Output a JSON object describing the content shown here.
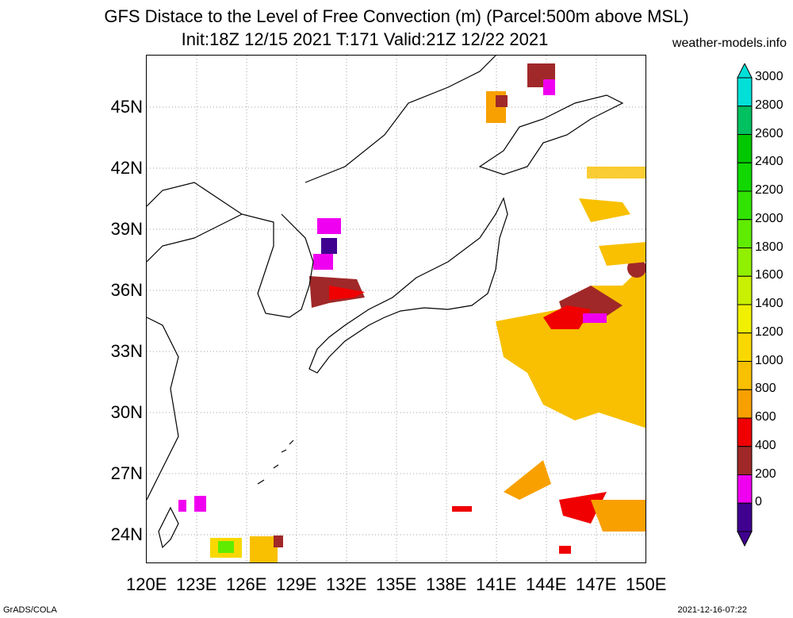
{
  "header": {
    "title_line1": "GFS Distace to the Level of Free Convection (m) (Parcel:500m above MSL)",
    "title_line2": "Init:18Z 12/15 2021 T:171 Valid:21Z 12/22 2021",
    "credit": "weather-models.info"
  },
  "axes": {
    "lat_labels": [
      "45N",
      "42N",
      "39N",
      "36N",
      "33N",
      "30N",
      "27N",
      "24N"
    ],
    "lon_labels": [
      "120E",
      "123E",
      "126E",
      "129E",
      "132E",
      "135E",
      "138E",
      "141E",
      "144E",
      "147E",
      "150E"
    ]
  },
  "colorbar": {
    "labels": [
      "3000",
      "2800",
      "2600",
      "2400",
      "2200",
      "2000",
      "1800",
      "1600",
      "1400",
      "1200",
      "1000",
      "800",
      "600",
      "400",
      "200",
      "0"
    ],
    "colors": [
      "#00e0d8",
      "#00c060",
      "#00c800",
      "#10d800",
      "#30e400",
      "#60ec00",
      "#90f000",
      "#c8f000",
      "#f0f000",
      "#f8d800",
      "#f8c000",
      "#f8a000",
      "#f00000",
      "#a02828",
      "#f000f0",
      "#400090"
    ]
  },
  "footer": {
    "left": "GrADS/COLA",
    "right": "2021-12-16-07:22"
  }
}
